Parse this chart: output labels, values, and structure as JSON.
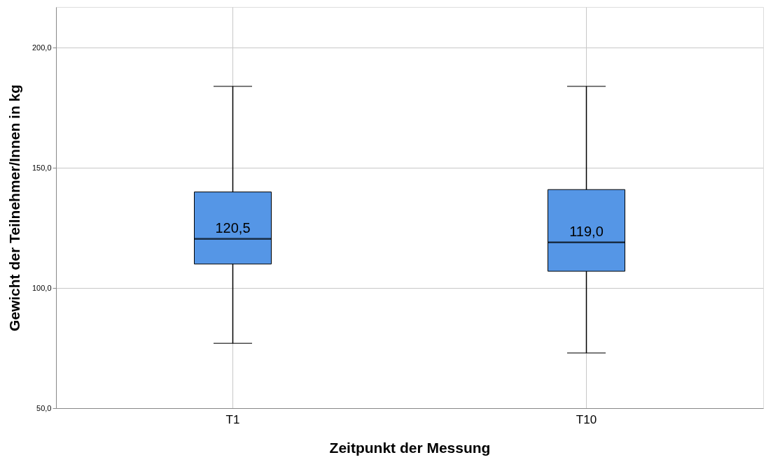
{
  "chart_data": {
    "type": "box",
    "xlabel": "Zeitpunkt der Messung",
    "ylabel": "Gewicht der Teilnehmer/Innen in kg",
    "categories": [
      "T1",
      "T10"
    ],
    "boxes": [
      {
        "low": 77,
        "q1": 110,
        "median": 120.5,
        "q3": 140,
        "high": 184
      },
      {
        "low": 73,
        "q1": 107,
        "median": 119.0,
        "q3": 141,
        "high": 184
      }
    ],
    "value_labels": [
      "120,5",
      "119,0"
    ],
    "color": "#5596e6",
    "ylim": [
      50,
      217
    ],
    "yticks": [
      {
        "value": 50,
        "label": "50,0"
      },
      {
        "value": 100,
        "label": "100,0"
      },
      {
        "value": 150,
        "label": "150,0"
      },
      {
        "value": 200,
        "label": "200,0"
      }
    ],
    "grid": true
  }
}
